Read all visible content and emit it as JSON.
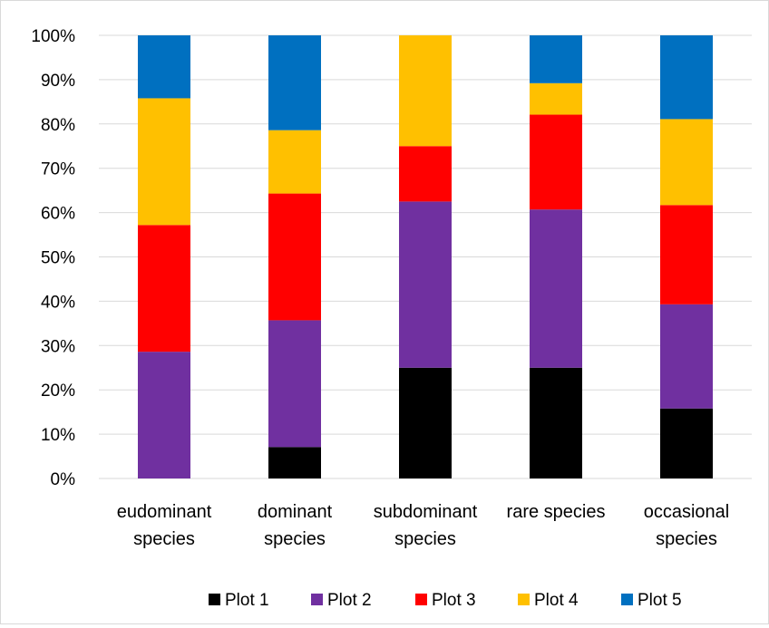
{
  "chart_data": {
    "type": "bar",
    "stacked": true,
    "categories": [
      [
        "eudominant",
        "species"
      ],
      [
        "dominant",
        "species"
      ],
      [
        "subdominant",
        "species"
      ],
      [
        "rare species"
      ],
      [
        "occasional",
        "species"
      ]
    ],
    "ylim": [
      0,
      100
    ],
    "yticks": [
      "0%",
      "10%",
      "20%",
      "30%",
      "40%",
      "50%",
      "60%",
      "70%",
      "80%",
      "90%",
      "100%"
    ],
    "grid": true,
    "legend_position": "bottom",
    "series": [
      {
        "name": "Plot 1",
        "color": "#000000",
        "values": [
          0,
          7.1,
          25.0,
          25.0,
          15.8
        ]
      },
      {
        "name": "Plot 2",
        "color": "#7030a0",
        "values": [
          28.6,
          28.6,
          37.5,
          35.7,
          23.5
        ]
      },
      {
        "name": "Plot 3",
        "color": "#ff0000",
        "values": [
          28.6,
          28.6,
          12.5,
          21.4,
          22.4
        ]
      },
      {
        "name": "Plot 4",
        "color": "#ffc000",
        "values": [
          28.6,
          14.3,
          25.0,
          7.1,
          19.4
        ]
      },
      {
        "name": "Plot 5",
        "color": "#0070c0",
        "values": [
          14.2,
          21.4,
          0,
          10.8,
          18.9
        ]
      }
    ]
  }
}
